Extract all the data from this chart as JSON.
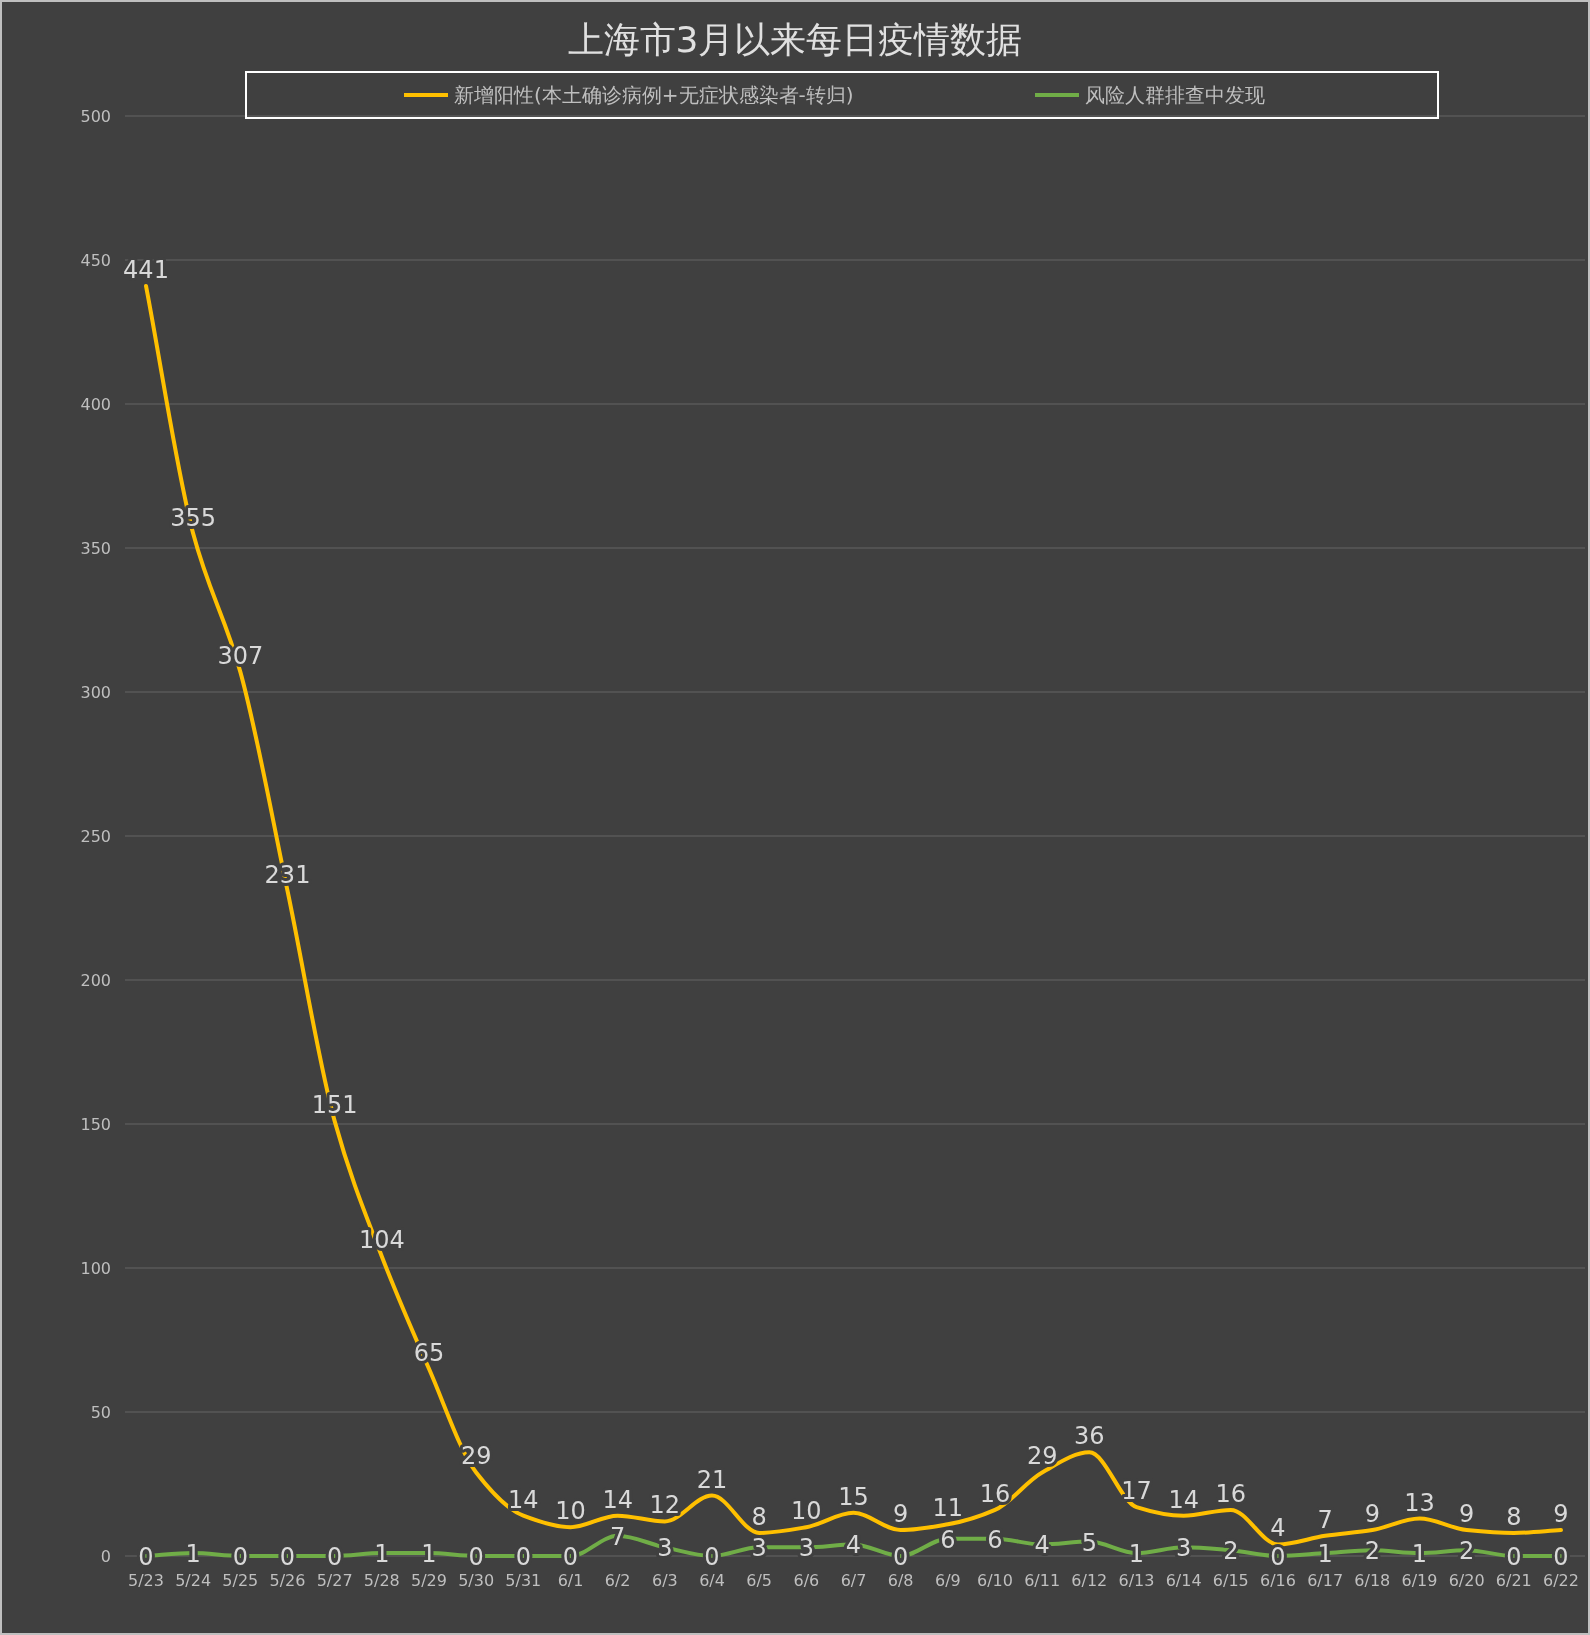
{
  "chart_data": {
    "type": "line",
    "title": "上海市3月以来每日疫情数据",
    "categories": [
      "5/23",
      "5/24",
      "5/25",
      "5/26",
      "5/27",
      "5/28",
      "5/29",
      "5/30",
      "5/31",
      "6/1",
      "6/2",
      "6/3",
      "6/4",
      "6/5",
      "6/6",
      "6/7",
      "6/8",
      "6/9",
      "6/10",
      "6/11",
      "6/12",
      "6/13",
      "6/14",
      "6/15",
      "6/16",
      "6/17",
      "6/18",
      "6/19",
      "6/20",
      "6/21",
      "6/22"
    ],
    "series": [
      {
        "name": "新增阳性(本土确诊病例+无症状感染者-转归)",
        "color": "#ffc000",
        "values": [
          441,
          355,
          307,
          231,
          151,
          104,
          65,
          29,
          14,
          10,
          14,
          12,
          21,
          8,
          10,
          15,
          9,
          11,
          16,
          29,
          36,
          17,
          14,
          16,
          4,
          7,
          9,
          13,
          9,
          8,
          9
        ]
      },
      {
        "name": "风险人群排查中发现",
        "color": "#70ad47",
        "values": [
          0,
          1,
          0,
          0,
          0,
          1,
          1,
          0,
          0,
          0,
          7,
          3,
          0,
          3,
          3,
          4,
          0,
          6,
          6,
          4,
          5,
          1,
          3,
          2,
          0,
          1,
          2,
          1,
          2,
          0,
          0
        ]
      }
    ],
    "ylim": [
      0,
      500
    ],
    "yticks": [
      0,
      50,
      100,
      150,
      200,
      250,
      300,
      350,
      400,
      450,
      500
    ],
    "grid": "y",
    "legend": "top",
    "data_labels": true
  }
}
